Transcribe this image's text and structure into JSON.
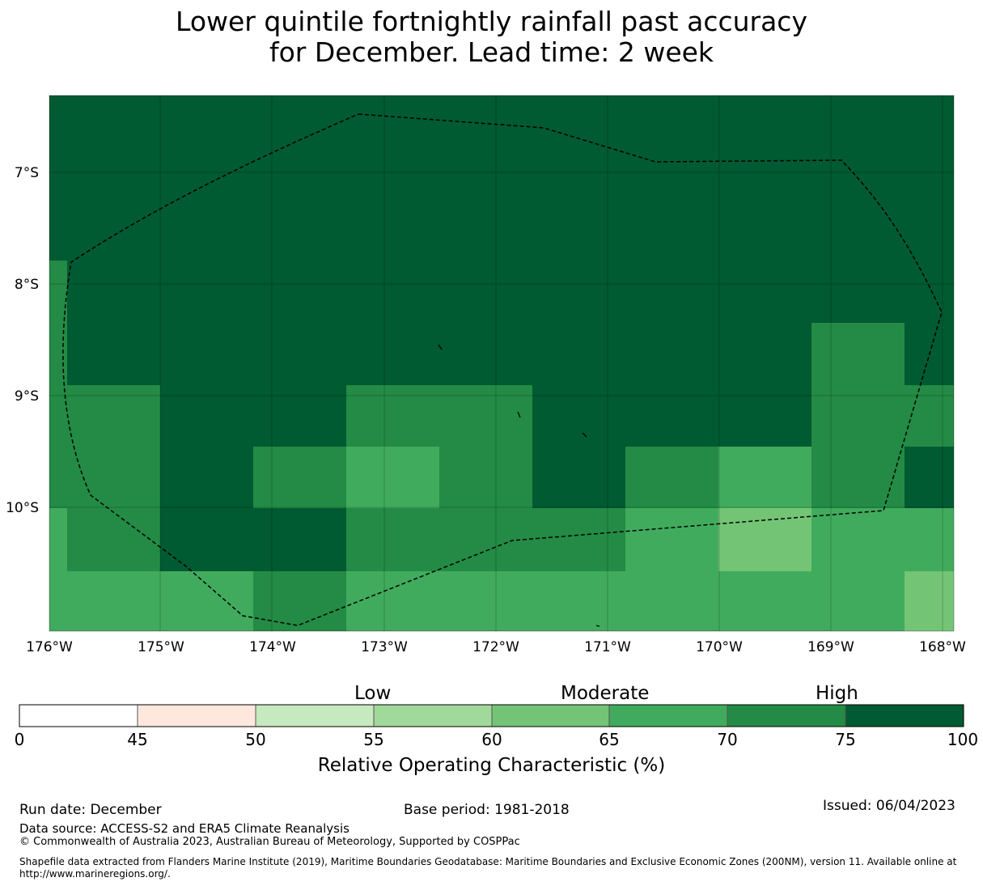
{
  "title_line1": "Lower quintile fortnightly rainfall past accuracy",
  "title_line2": "for December. Lead time: 2 week",
  "map": {
    "lon_labels": [
      "176°W",
      "175°W",
      "174°W",
      "173°W",
      "172°W",
      "171°W",
      "170°W",
      "169°W",
      "168°W"
    ],
    "lat_labels": [
      "7°S",
      "8°S",
      "9°S",
      "10°S"
    ],
    "lon_range": [
      -176,
      -168
    ],
    "lat_range": [
      -6.3,
      -11.1
    ],
    "grid_values_roc_percent": [
      {
        "lon": [
          -176,
          -168
        ],
        "lat": [
          -6.3,
          -8.9
        ],
        "roc": "75-100"
      },
      {
        "lon": [
          -173.3,
          -171.7
        ],
        "lat": [
          -8.9,
          -9.45
        ],
        "roc": "70-75"
      },
      {
        "lon": [
          -169.2,
          -168.4
        ],
        "lat": [
          -8.35,
          -10.0
        ],
        "roc": "70-75"
      },
      {
        "lon": [
          -173.3,
          -172.5
        ],
        "lat": [
          -9.45,
          -10.0
        ],
        "roc": "65-70"
      },
      {
        "lon": [
          -170.0,
          -169.2
        ],
        "lat": [
          -9.45,
          -10.0
        ],
        "roc": "65-70"
      },
      {
        "lon": [
          -170.0,
          -169.2
        ],
        "lat": [
          -10.0,
          -10.55
        ],
        "roc": "60-65"
      },
      {
        "lon": [
          -168.4,
          -168
        ],
        "lat": [
          -10.55,
          -11.1
        ],
        "roc": "60-65"
      },
      {
        "lon": [
          -168.4,
          -168
        ],
        "lat": [
          -9.45,
          -10.0
        ],
        "roc": "75-100"
      }
    ],
    "boundary": "Exclusive Economic Zone (dashed outline)"
  },
  "colorbar": {
    "ticks": [
      "0",
      "45",
      "50",
      "55",
      "60",
      "65",
      "70",
      "75",
      "100"
    ],
    "colors": [
      "#ffffff",
      "#fee8de",
      "#c7e9c0",
      "#a1d99b",
      "#74c476",
      "#41ab5d",
      "#238b45",
      "#005a32"
    ],
    "category_labels": [
      "Low",
      "Moderate",
      "High"
    ],
    "title": "Relative Operating Characteristic (%)"
  },
  "footer": {
    "run_date": "Run date: December",
    "base_period": "Base period: 1981-2018",
    "issued": "Issued: 06/04/2023",
    "data_source": "Data source: ACCESS-S2 and ERA5 Climate Reanalysis",
    "copyright": "© Commonwealth of Australia 2023, Australian Bureau of Meteorology, Supported by COSPPac",
    "shapefile_line1": "Shapefile data extracted from Flanders Marine Institute (2019), Maritime Boundaries Geodatabase: Maritime Boundaries and Exclusive Economic Zones (200NM), version 11. Available online at",
    "shapefile_line2": "http://www.marineregions.org/."
  }
}
